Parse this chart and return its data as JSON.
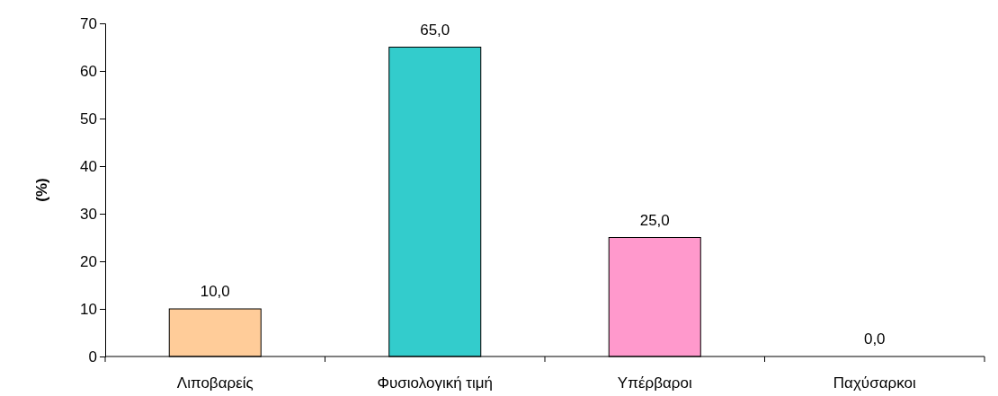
{
  "chart_data": {
    "type": "bar",
    "ylabel": "(%)",
    "categories": [
      "Λιποβαρείς",
      "Φυσιολογική τιμή",
      "Υπέρβαροι",
      "Παχύσαρκοι"
    ],
    "values": [
      10,
      65,
      25,
      0
    ],
    "colors": [
      "#ffcc99",
      "#33cccc",
      "#ff99cc",
      "#ccccff"
    ],
    "value_labels": [
      "10,0",
      "65,0",
      "25,0",
      "0,0"
    ],
    "ylim": [
      0,
      70
    ],
    "yticks": [
      0,
      10,
      20,
      30,
      40,
      50,
      60,
      70
    ],
    "grid": false
  }
}
